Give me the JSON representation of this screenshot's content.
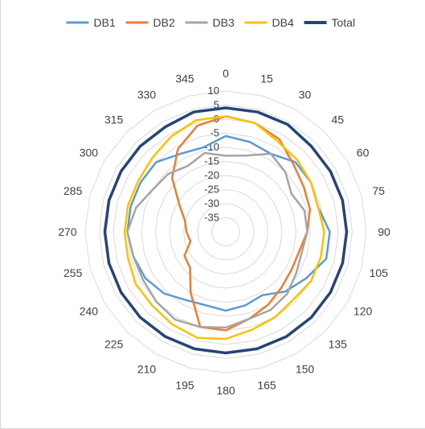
{
  "chart_data": {
    "type": "radar",
    "title": "",
    "categories": [
      "0",
      "15",
      "30",
      "45",
      "60",
      "75",
      "90",
      "105",
      "120",
      "135",
      "150",
      "165",
      "180",
      "195",
      "210",
      "225",
      "240",
      "255",
      "270",
      "285",
      "300",
      "315",
      "330",
      "345"
    ],
    "r_ticks": [
      "10",
      "5",
      "0",
      "-5",
      "-10",
      "-15",
      "-20",
      "-25",
      "-30",
      "-35"
    ],
    "rlim": [
      -40,
      10
    ],
    "grid": true,
    "legend_position": "top",
    "series": [
      {
        "name": "DB1",
        "color": "#5b9bd5",
        "values": [
          -6,
          -7,
          -8,
          -5,
          -5,
          -6,
          -3,
          -3,
          -7,
          -10,
          -14,
          -13,
          -12,
          -13,
          -12,
          -9,
          -7,
          -6,
          -5,
          -5,
          -5,
          -5,
          -8,
          -9
        ]
      },
      {
        "name": "DB2",
        "color": "#ed7d31",
        "values": [
          1,
          0,
          -2,
          -6,
          -8,
          -9,
          -11,
          -13,
          -13,
          -12,
          -10,
          -8,
          -5,
          -5,
          -15,
          -22,
          -23,
          -27,
          -26,
          -25,
          -21,
          -13,
          -6,
          -1
        ]
      },
      {
        "name": "DB3",
        "color": "#a5a5a5",
        "values": [
          -13,
          -12,
          -8,
          -10,
          -13,
          -11,
          -11,
          -12,
          -11,
          -9,
          -8,
          -8,
          -6,
          -5,
          -4,
          -5,
          -6,
          -6,
          -5,
          -7,
          -10,
          -11,
          -13,
          -11
        ]
      },
      {
        "name": "DB4",
        "color": "#ffc000",
        "values": [
          1,
          0,
          -3,
          -4,
          -5,
          -6,
          -5,
          -5,
          -5,
          -6,
          -5,
          -4,
          -2,
          -1,
          -2,
          -3,
          -3,
          -4,
          -4,
          -4,
          -4,
          -3,
          -1,
          1
        ]
      },
      {
        "name": "Total",
        "color": "#264478",
        "values": [
          4,
          4,
          4,
          3,
          3,
          3,
          3,
          3,
          3,
          3,
          3,
          3,
          3,
          3,
          3,
          3,
          3,
          3,
          3,
          3,
          3,
          3,
          3,
          4
        ]
      }
    ]
  }
}
